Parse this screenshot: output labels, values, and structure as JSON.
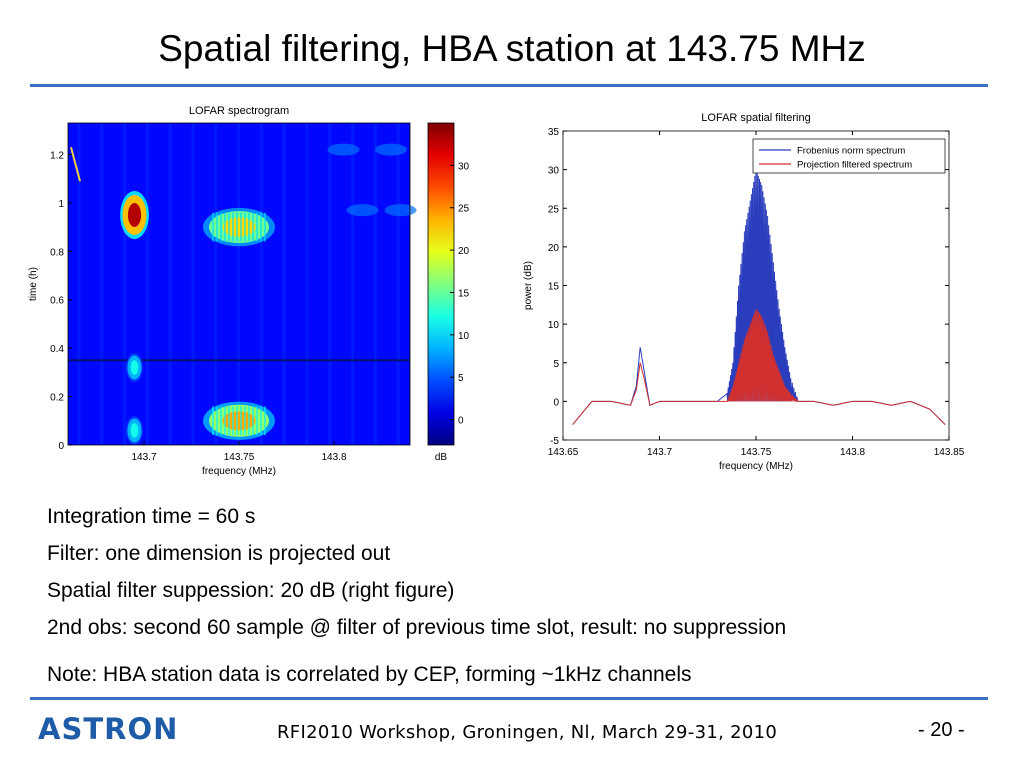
{
  "slide": {
    "title": "Spatial filtering, HBA station at 143.75 MHz",
    "bullets": [
      "Integration time = 60 s",
      "Filter: one dimension is projected out",
      "Spatial filter suppession: 20 dB (right figure)",
      "2nd obs: second 60 sample @ filter of previous time slot, result: no suppression"
    ],
    "note": "Note: HBA station data is correlated by CEP, forming ~1kHz channels",
    "footer": "RFI2010 Workshop, Groningen, Nl, March 29-31, 2010",
    "page_number": "- 20 -",
    "logo_text": "ASTRON",
    "accent_color": "#3a6fc1",
    "logo_color": "#1f5ca8"
  },
  "chart_data": [
    {
      "type": "heatmap",
      "title": "LOFAR spectrogram",
      "xlabel": "frequency (MHz)",
      "ylabel": "time (h)",
      "xlim": [
        143.66,
        143.84
      ],
      "ylim": [
        0,
        1.33
      ],
      "xticks": [
        "143.7",
        "143.75",
        "143.8"
      ],
      "yticks": [
        "0",
        "0.2",
        "0.4",
        "0.6",
        "0.8",
        "1",
        "1.2"
      ],
      "colorbar": {
        "label": "dB",
        "range": [
          -3,
          35
        ],
        "ticks": [
          "0",
          "5",
          "10",
          "15",
          "20",
          "25",
          "30"
        ]
      },
      "features": [
        {
          "freq_mhz": 143.695,
          "time_h": 0.95,
          "peak_db": 33
        },
        {
          "freq_mhz": 143.75,
          "time_h": 0.9,
          "peak_db": 22
        },
        {
          "freq_mhz": 143.695,
          "time_h": 0.32,
          "peak_db": 12
        },
        {
          "freq_mhz": 143.695,
          "time_h": 0.06,
          "peak_db": 12
        },
        {
          "freq_mhz": 143.75,
          "time_h": 0.1,
          "peak_db": 24
        }
      ]
    },
    {
      "type": "line",
      "title": "LOFAR spatial filtering",
      "xlabel": "frequency (MHz)",
      "ylabel": "power (dB)",
      "xlim": [
        143.65,
        143.85
      ],
      "ylim": [
        -5,
        35
      ],
      "xticks": [
        "143.65",
        "143.7",
        "143.75",
        "143.8",
        "143.85"
      ],
      "yticks": [
        "-5",
        "0",
        "5",
        "10",
        "15",
        "20",
        "25",
        "30",
        "35"
      ],
      "legend_position": "top-right",
      "x": [
        143.655,
        143.665,
        143.675,
        143.685,
        143.688,
        143.69,
        143.692,
        143.695,
        143.7,
        143.71,
        143.72,
        143.73,
        143.735,
        143.738,
        143.741,
        143.744,
        143.747,
        143.75,
        143.753,
        143.756,
        143.759,
        143.762,
        143.765,
        143.768,
        143.772,
        143.78,
        143.79,
        143.8,
        143.81,
        143.82,
        143.83,
        143.84,
        143.848
      ],
      "series": [
        {
          "name": "Frobenius norm spectrum",
          "color": "#2a3dbd",
          "values": [
            -3,
            0,
            0,
            -0.5,
            2,
            7,
            4,
            -0.5,
            0,
            0,
            0,
            0,
            1,
            5,
            15,
            22,
            26,
            30,
            28,
            24,
            18,
            12,
            7,
            3,
            0,
            0,
            -0.5,
            0,
            0,
            -0.5,
            0,
            -1,
            -3
          ]
        },
        {
          "name": "Projection filtered spectrum",
          "color": "#d03030",
          "values": [
            -3,
            0,
            0,
            -0.5,
            1.5,
            5,
            3,
            -0.5,
            0,
            0,
            0,
            0,
            0,
            2,
            5,
            8,
            10,
            12,
            11,
            9,
            6,
            4,
            2,
            1,
            0,
            0,
            -0.5,
            0,
            0,
            -0.5,
            0,
            -1,
            -3
          ]
        }
      ]
    }
  ]
}
